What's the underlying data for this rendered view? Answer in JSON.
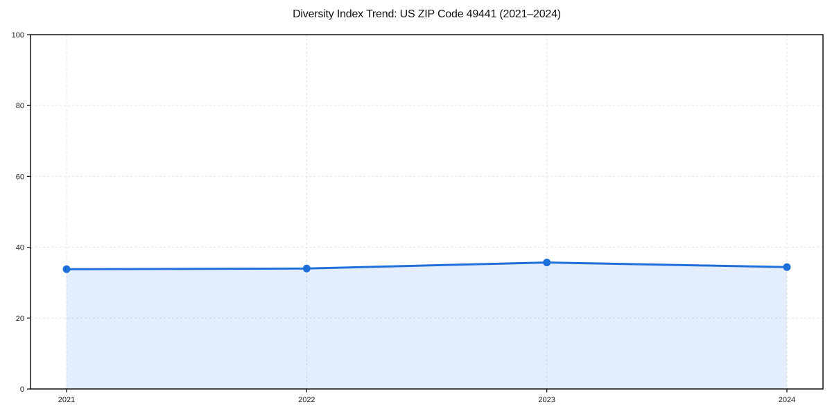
{
  "page": {
    "background": "#ffffff"
  },
  "chart_data": {
    "type": "area",
    "title": "Diversity Index Trend: US ZIP Code 49441 (2021–2024)",
    "x": [
      "2021",
      "2022",
      "2023",
      "2024"
    ],
    "series": [
      {
        "name": "Diversity Index",
        "values": [
          33.8,
          34.0,
          35.7,
          34.4
        ]
      }
    ],
    "xlabel": "",
    "ylabel": "",
    "ylim": [
      0,
      100
    ],
    "yticks": [
      0,
      20,
      40,
      60,
      80,
      100
    ],
    "grid": "dashed-both-axes",
    "legend": "none",
    "frame": "full-box",
    "marker": "circle",
    "colors": {
      "line": "#1f6fdb",
      "marker": "#1f6fdb",
      "fill": "rgba(31,111,219,0.12)",
      "grid": "#e3e3e3",
      "axis": "#000000",
      "tick_text": "#1a1a1a",
      "title_text": "#111111"
    }
  }
}
